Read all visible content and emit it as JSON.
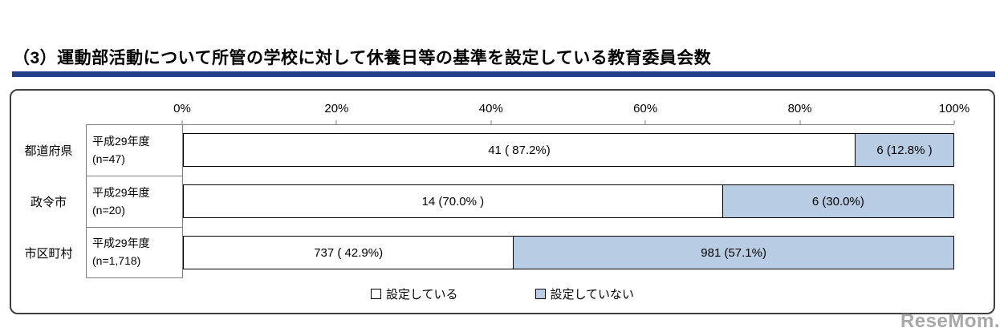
{
  "title": "（3）運動部活動について所管の学校に対して休養日等の基準を設定している教育委員会数",
  "watermark": "ReseMom.",
  "colors": {
    "title_underline": "#24408c",
    "bar_set_fill": "#ffffff",
    "bar_notset_fill": "#b8cce4",
    "bar_border": "#000000"
  },
  "chart_data": {
    "type": "bar",
    "orientation": "horizontal",
    "stacked": true,
    "unit": "percent",
    "x_axis": {
      "ticks": [
        "0%",
        "20%",
        "40%",
        "60%",
        "80%",
        "100%"
      ],
      "range": [
        0,
        100
      ]
    },
    "rows": [
      {
        "category": "都道府県",
        "period": "平成29年度",
        "n_label": "(n=47)",
        "segments": [
          {
            "series": "設定している",
            "label": "41 ( 87.2%)",
            "value": 87.2
          },
          {
            "series": "設定していない",
            "label": "6 (12.8% )",
            "value": 12.8
          }
        ]
      },
      {
        "category": "政令市",
        "period": "平成29年度",
        "n_label": "(n=20)",
        "segments": [
          {
            "series": "設定している",
            "label": "14 (70.0% )",
            "value": 70.0
          },
          {
            "series": "設定していない",
            "label": "6 (30.0%)",
            "value": 30.0
          }
        ]
      },
      {
        "category": "市区町村",
        "period": "平成29年度",
        "n_label": "(n=1,718)",
        "segments": [
          {
            "series": "設定している",
            "label": "737 ( 42.9%)",
            "value": 42.9
          },
          {
            "series": "設定していない",
            "label": "981 (57.1%)",
            "value": 57.1
          }
        ]
      }
    ],
    "legend": [
      {
        "label": "設定している",
        "color": "#ffffff"
      },
      {
        "label": "設定していない",
        "color": "#b8cce4"
      }
    ]
  }
}
